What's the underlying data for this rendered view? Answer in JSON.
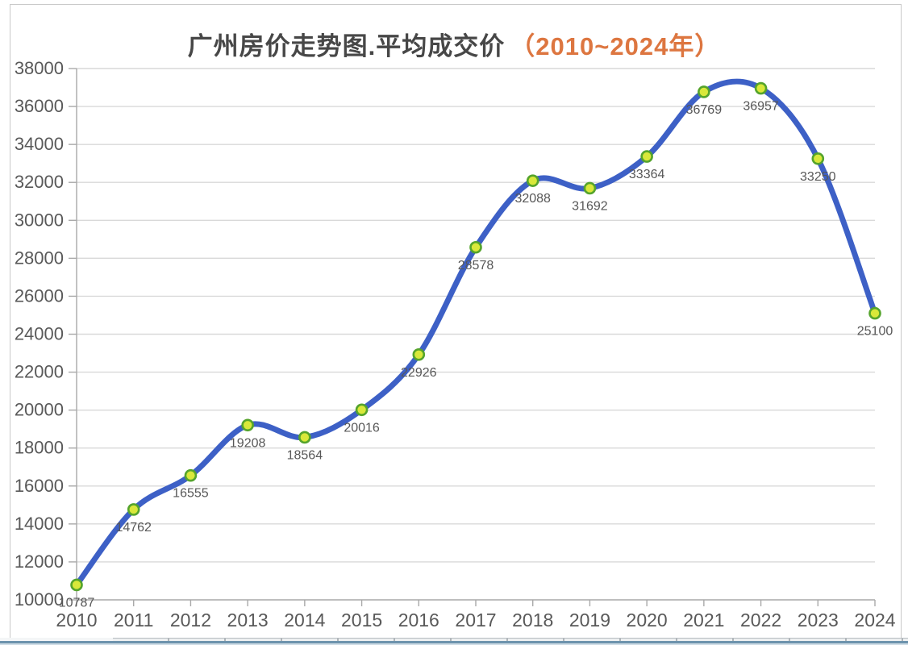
{
  "title": {
    "main": "广州房价走势图.平均成交价",
    "range": "（2010~2024年）"
  },
  "chart_data": {
    "type": "line",
    "title": "广州房价走势图.平均成交价（2010~2024年）",
    "categories": [
      "2010",
      "2011",
      "2012",
      "2013",
      "2014",
      "2015",
      "2016",
      "2017",
      "2018",
      "2019",
      "2020",
      "2021",
      "2022",
      "2023",
      "2024"
    ],
    "values": [
      10787,
      14762,
      16555,
      19208,
      18564,
      20016,
      22926,
      28578,
      32088,
      31692,
      33364,
      36769,
      36957,
      33250,
      25100
    ],
    "series": [
      {
        "name": "平均成交价",
        "values": [
          10787,
          14762,
          16555,
          19208,
          18564,
          20016,
          22926,
          28578,
          32088,
          31692,
          33364,
          36769,
          36957,
          33250,
          25100
        ]
      }
    ],
    "y_ticks": [
      10000,
      12000,
      14000,
      16000,
      18000,
      20000,
      22000,
      24000,
      26000,
      28000,
      30000,
      32000,
      34000,
      36000,
      38000
    ],
    "ylim": [
      10000,
      38000
    ],
    "xlabel": "",
    "ylabel": "",
    "grid": true,
    "legend": "none",
    "smooth": true,
    "data_labels": true
  },
  "colors": {
    "line": "#3d60c6",
    "marker_fill": "#d9e83a",
    "marker_stroke": "#55a42c",
    "gridline": "#d9d9d9",
    "axis": "#a9a9a9",
    "tick_text": "#595959",
    "data_label_text": "#575757",
    "title_text": "#474747",
    "title_accent": "#dd7640"
  }
}
